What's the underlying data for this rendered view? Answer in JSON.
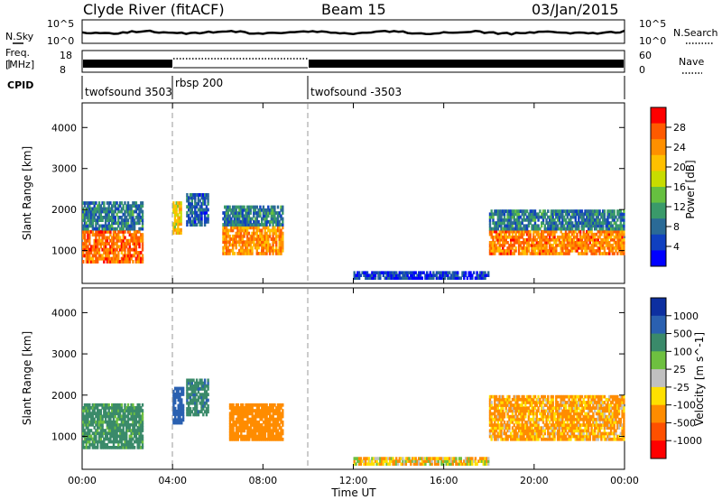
{
  "header": {
    "station": "Clyde River (fitACF)",
    "beam": "Beam 15",
    "date": "03/Jan/2015"
  },
  "noise_panel": {
    "left_label": "N.Sky",
    "right_label": "N.Search",
    "left_ticks": [
      "10^5",
      "10^0"
    ],
    "right_ticks": [
      "10^5",
      "10^0"
    ]
  },
  "freq_panel": {
    "left_label_top": "Freq.",
    "left_label_bottom": "[MHz]",
    "right_label": "Nave",
    "left_ticks": [
      "18",
      "8"
    ],
    "right_ticks": [
      "60",
      "0"
    ]
  },
  "cpid": {
    "label": "CPID",
    "segments": [
      {
        "name": "twofsound  3503",
        "start_hour": 0,
        "end_hour": 4
      },
      {
        "name": "rbsp  200",
        "start_hour": 4,
        "end_hour": 10
      },
      {
        "name": "twofsound  -3503",
        "start_hour": 10,
        "end_hour": 24
      }
    ]
  },
  "colorbars": {
    "power": {
      "label": "Power [dB]",
      "ticks": [
        "28",
        "24",
        "20",
        "16",
        "12",
        "8",
        "4"
      ],
      "colors": [
        "#ff0000",
        "#ff5a00",
        "#ff9000",
        "#ffc000",
        "#c8dc00",
        "#66c040",
        "#3a9a6a",
        "#2a6a96",
        "#1040c0",
        "#0000ff"
      ]
    },
    "velocity": {
      "label": "Velocity [m s^-1]",
      "ticks": [
        "1000",
        "500",
        "100",
        "25",
        "-25",
        "-100",
        "-500",
        "-1000"
      ],
      "colors": [
        "#0d2fa0",
        "#2a60b0",
        "#3a8a6a",
        "#6ec040",
        "#c0c0c0",
        "#ffe000",
        "#ff8c00",
        "#ff5000",
        "#ff0000"
      ]
    }
  },
  "chart_data": [
    {
      "type": "heatmap",
      "title": "Power",
      "ylabel": "Slant Range [km]",
      "xlabel": "",
      "x_ticks": [
        "00:00",
        "04:00",
        "08:00",
        "12:00",
        "16:00",
        "20:00",
        "00:00"
      ],
      "y_ticks": [
        "1000",
        "2000",
        "3000",
        "4000"
      ],
      "ylim": [
        200,
        4600
      ],
      "xlim_hours": [
        0,
        24
      ],
      "regions": [
        {
          "t0": 0.0,
          "t1": 2.7,
          "r0": 700,
          "r1": 1500,
          "value_db": 26
        },
        {
          "t0": 0.0,
          "t1": 2.7,
          "r0": 1500,
          "r1": 2200,
          "value_db": 10
        },
        {
          "t0": 4.0,
          "t1": 4.4,
          "r0": 1400,
          "r1": 2200,
          "value_db": 20
        },
        {
          "t0": 4.6,
          "t1": 5.6,
          "r0": 1600,
          "r1": 2400,
          "value_db": 8
        },
        {
          "t0": 6.2,
          "t1": 8.9,
          "r0": 900,
          "r1": 1600,
          "value_db": 24
        },
        {
          "t0": 6.2,
          "t1": 8.9,
          "r0": 1600,
          "r1": 2100,
          "value_db": 10
        },
        {
          "t0": 18.0,
          "t1": 24.0,
          "r0": 900,
          "r1": 1500,
          "value_db": 25
        },
        {
          "t0": 18.0,
          "t1": 24.0,
          "r0": 1500,
          "r1": 2000,
          "value_db": 10
        },
        {
          "t0": 12.0,
          "t1": 18.0,
          "r0": 300,
          "r1": 500,
          "value_db": 6
        }
      ]
    },
    {
      "type": "heatmap",
      "title": "Velocity",
      "ylabel": "Slant Range [km]",
      "xlabel": "Time UT",
      "x_ticks": [
        "00:00",
        "04:00",
        "08:00",
        "12:00",
        "16:00",
        "20:00",
        "00:00"
      ],
      "y_ticks": [
        "1000",
        "2000",
        "3000",
        "4000"
      ],
      "ylim": [
        200,
        4600
      ],
      "xlim_hours": [
        0,
        24
      ],
      "regions": [
        {
          "t0": 0.0,
          "t1": 2.7,
          "r0": 700,
          "r1": 1800,
          "value_ms": 200
        },
        {
          "t0": 4.0,
          "t1": 4.5,
          "r0": 1300,
          "r1": 2200,
          "value_ms": 800
        },
        {
          "t0": 4.6,
          "t1": 5.6,
          "r0": 1500,
          "r1": 2400,
          "value_ms": 400
        },
        {
          "t0": 6.5,
          "t1": 8.9,
          "r0": 900,
          "r1": 1800,
          "value_ms": -300
        },
        {
          "t0": 18.0,
          "t1": 24.0,
          "r0": 900,
          "r1": 2000,
          "value_ms": -150
        },
        {
          "t0": 12.0,
          "t1": 18.0,
          "r0": 300,
          "r1": 500,
          "value_ms": -50
        }
      ]
    }
  ]
}
